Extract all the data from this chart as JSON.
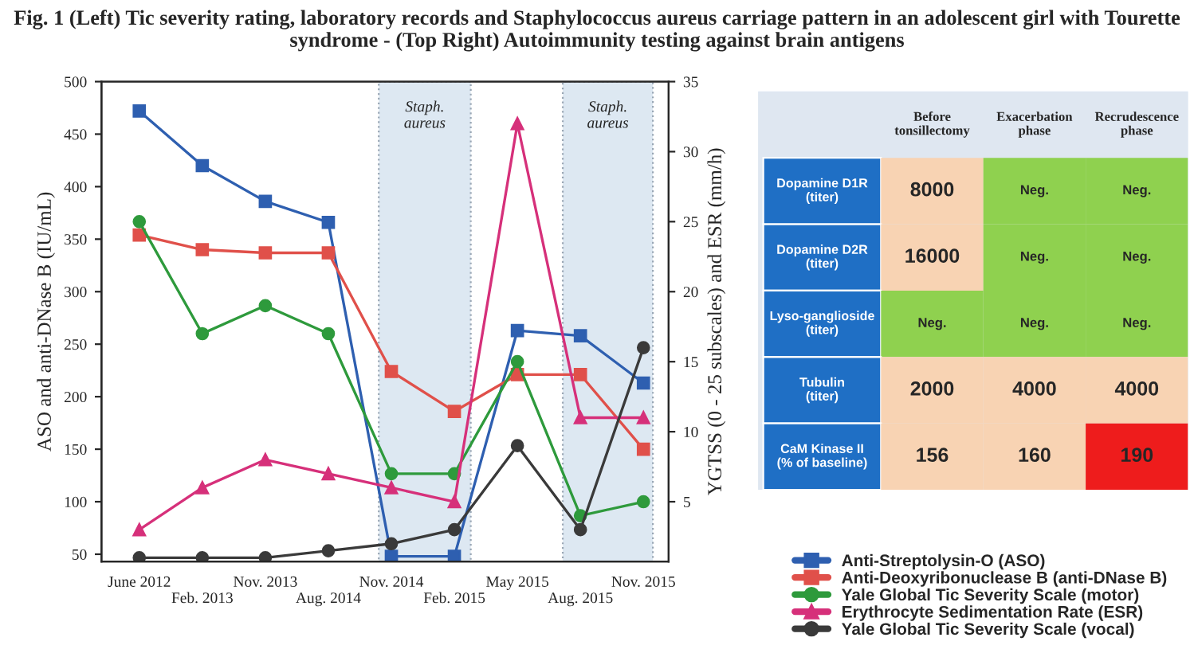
{
  "chart_data": [
    {
      "type": "line",
      "title": "Fig. 1 (Left) Tic severity rating, laboratory records and Staphylococcus aureus carriage pattern in an adolescent girl with Tourette syndrome - (Top Right) Autoimmunity testing against brain antigens",
      "ylabel": "ASO and anti-DNase B (IU/mL)",
      "y2label": "YGTSS (0 - 25 subscales) and ESR (mm/h)",
      "categories": [
        "June 2012",
        "Feb. 2013",
        "Nov. 2013",
        "Aug. 2014",
        "Nov. 2014",
        "Feb. 2015",
        "May 2015",
        "Aug. 2015",
        "Nov. 2015"
      ],
      "ylim": [
        43,
        500
      ],
      "yticks": [
        50,
        100,
        150,
        200,
        250,
        300,
        350,
        400,
        450,
        500
      ],
      "y2lim": [
        0.725,
        35
      ],
      "y2ticks": [
        5,
        10,
        15,
        20,
        25,
        30,
        35
      ],
      "series": [
        {
          "name": "Anti-Streptolysin-O (ASO)",
          "color": "#2e5fb0",
          "marker": "square",
          "values": [
            472,
            420,
            386,
            366,
            48,
            48,
            263,
            258,
            213
          ]
        },
        {
          "name": "Anti-Deoxyribonuclease B (anti-DNase B)",
          "color": "#e0504a",
          "marker": "square",
          "values": [
            354,
            340,
            337,
            337,
            224,
            186,
            221,
            221,
            150
          ]
        },
        {
          "name": "Yale Global Tic Severity Scale (motor)",
          "color": "#2e9a3c",
          "marker": "circle",
          "axis": "y2",
          "values": [
            25,
            17,
            19,
            17,
            7,
            7,
            15,
            4,
            5
          ]
        },
        {
          "name": "Erythrocyte Sedimentation Rate (ESR)",
          "color": "#d6307a",
          "marker": "triangle",
          "axis": "y2",
          "values": [
            3,
            6,
            8,
            7,
            6,
            5,
            32,
            11,
            11
          ]
        },
        {
          "name": "Yale Global Tic Severity Scale (vocal)",
          "color": "#3a3a3a",
          "marker": "circle",
          "axis": "y2",
          "values": [
            1,
            1,
            1,
            1.5,
            2,
            3,
            9,
            3,
            16
          ]
        }
      ],
      "annotations": [
        "Staph. aureus",
        "Staph. aureus"
      ],
      "legend": "bottom right",
      "grid": false,
      "line_style": "solid"
    },
    {
      "type": "other",
      "categories": [
        "Before tonsillectomy",
        "Exacerbation phase",
        "Recrudescence phase"
      ],
      "y_categories": [
        "Dopamine D1R\n(titer)",
        "Dopamine D2R\n(titer)",
        "Lyso-ganglioside\n(titer)",
        "Tubulin\n(titer)",
        "CaM Kinase II\n(% of baseline)"
      ],
      "cell_labels": [
        [
          "8000",
          "Neg.",
          "Neg."
        ],
        [
          "16000",
          "Neg.",
          "Neg."
        ],
        [
          "Neg.",
          "Neg.",
          "Neg."
        ],
        [
          "2000",
          "4000",
          "4000"
        ],
        [
          "156",
          "160",
          "190"
        ]
      ],
      "colors": [
        [
          "#f8d3b3",
          "#8fd14f",
          "#8fd14f"
        ],
        [
          "#f8d3b3",
          "#8fd14f",
          "#8fd14f"
        ],
        [
          "#8fd14f",
          "#8fd14f",
          "#8fd14f"
        ],
        [
          "#f8d3b3",
          "#f8d3b3",
          "#f8d3b3"
        ],
        [
          "#f8d3b3",
          "#f8d3b3",
          "#ee1c1c"
        ]
      ]
    }
  ]
}
